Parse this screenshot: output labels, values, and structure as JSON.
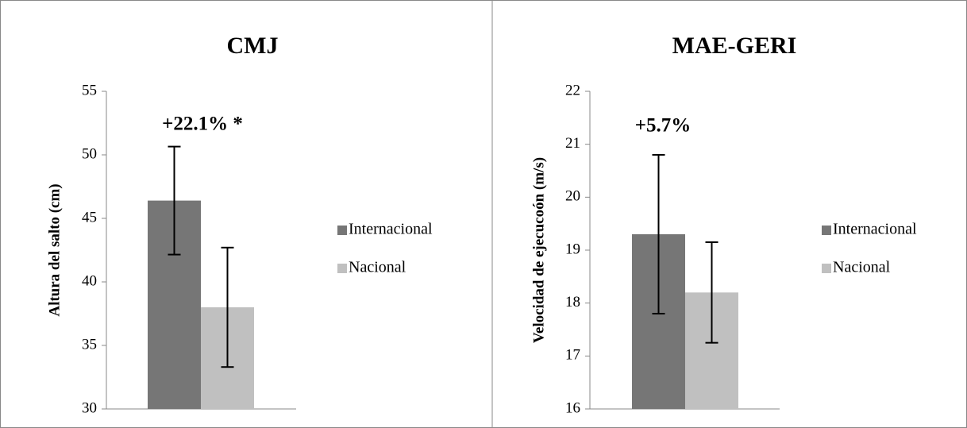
{
  "chart_data": [
    {
      "type": "bar",
      "title": "CMJ",
      "y_label": "Altura del salto (cm)",
      "annotation": "+22.1% *",
      "categories": [
        null
      ],
      "series": [
        {
          "name": "Internacional",
          "color": "#767676",
          "values": [
            46.4
          ],
          "errors": [
            4.25
          ]
        },
        {
          "name": "Nacional",
          "color": "#c0c0c0",
          "values": [
            38.0
          ],
          "errors": [
            4.7
          ]
        }
      ],
      "ylim": [
        30,
        55
      ],
      "yticks": [
        30,
        35,
        40,
        45,
        50,
        55
      ],
      "legend": "right"
    },
    {
      "type": "bar",
      "title": "MAE-GERI",
      "y_label": "Velocidad de ejecucoón (m/s)",
      "annotation": "+5.7%",
      "categories": [
        null
      ],
      "series": [
        {
          "name": "Internacional",
          "color": "#767676",
          "values": [
            19.3
          ],
          "errors": [
            1.5
          ]
        },
        {
          "name": "Nacional",
          "color": "#c0c0c0",
          "values": [
            18.2
          ],
          "errors": [
            0.95
          ]
        }
      ],
      "ylim": [
        16,
        22
      ],
      "yticks": [
        16,
        17,
        18,
        19,
        20,
        21,
        22
      ],
      "legend": "right"
    }
  ]
}
